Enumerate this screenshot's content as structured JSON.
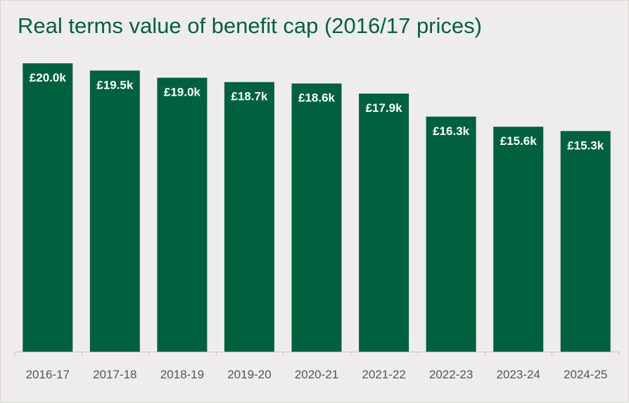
{
  "chart_data": {
    "type": "bar",
    "title": "Real terms value of benefit cap (2016/17 prices)",
    "categories": [
      "2016-17",
      "2017-18",
      "2018-19",
      "2019-20",
      "2020-21",
      "2021-22",
      "2022-23",
      "2023-24",
      "2024-25"
    ],
    "values": [
      20.0,
      19.5,
      19.0,
      18.7,
      18.6,
      17.9,
      16.3,
      15.6,
      15.3
    ],
    "labels": [
      "£20.0k",
      "£19.5k",
      "£19.0k",
      "£18.7k",
      "£18.6k",
      "£17.9k",
      "£16.3k",
      "£15.6k",
      "£15.3k"
    ],
    "unit": "£ thousands",
    "ylim": [
      0,
      20.0
    ],
    "grid": false,
    "bar_color": "#00613f",
    "title_color": "#00613f",
    "label_color": "#ffffff"
  }
}
